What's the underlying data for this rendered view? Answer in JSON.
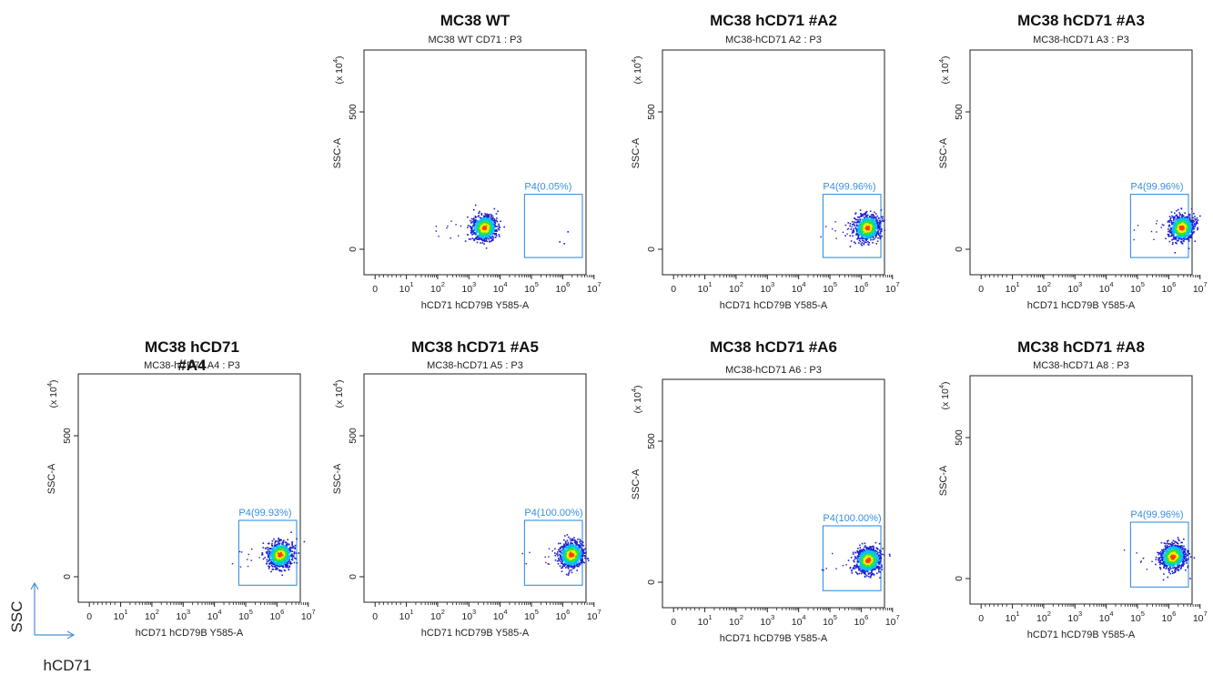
{
  "colors": {
    "gate": "#3a8fe0",
    "axis": "#222222",
    "legend_arrow": "#4a90d9",
    "density": [
      "#2020d0",
      "#00c0ff",
      "#30e040",
      "#f0f000",
      "#ff4000"
    ]
  },
  "legend": {
    "y_label": "SSC",
    "x_label": "hCD71"
  },
  "chart_data": [
    {
      "type": "scatter",
      "title": "MC38 WT",
      "subtitle": "MC38 WT CD71 : P3",
      "xlabel": "hCD71 hCD79B Y585-A",
      "ylabel": "SSC-A",
      "x_scale": "log",
      "xlim": [
        0,
        10000000
      ],
      "x_ticks": [
        "0",
        "10",
        "10",
        "10",
        "10",
        "10",
        "10",
        "10"
      ],
      "x_tick_exps": [
        "",
        "1",
        "2",
        "3",
        "4",
        "5",
        "6",
        "7"
      ],
      "y_multiplier": "(x 10",
      "y_multiplier_exp": "4",
      "y_ticks": [
        "0",
        "500"
      ],
      "gate": {
        "name": "P4",
        "label": "P4(0.05%)",
        "percent": 0.05,
        "x_range": [
          60000,
          10000000
        ],
        "y_range": [
          -30,
          200
        ]
      },
      "population": {
        "x_center": 3000,
        "y_center": 80
      }
    },
    {
      "type": "scatter",
      "title": "MC38 hCD71 #A2",
      "subtitle": "MC38-hCD71 A2 : P3",
      "xlabel": "hCD71 hCD79B Y585-A",
      "ylabel": "SSC-A",
      "x_scale": "log",
      "xlim": [
        0,
        10000000
      ],
      "x_ticks": [
        "0",
        "10",
        "10",
        "10",
        "10",
        "10",
        "10",
        "10"
      ],
      "x_tick_exps": [
        "",
        "1",
        "2",
        "3",
        "4",
        "5",
        "6",
        "7"
      ],
      "y_multiplier": "(x 10",
      "y_multiplier_exp": "4",
      "y_ticks": [
        "0",
        "500"
      ],
      "gate": {
        "name": "P4",
        "label": "P4(99.96%)",
        "percent": 99.96,
        "x_range": [
          60000,
          10000000
        ],
        "y_range": [
          -30,
          200
        ]
      },
      "population": {
        "x_center": 1500000,
        "y_center": 80
      }
    },
    {
      "type": "scatter",
      "title": "MC38 hCD71 #A3",
      "subtitle": "MC38-hCD71 A3 : P3",
      "xlabel": "hCD71 hCD79B Y585-A",
      "ylabel": "SSC-A",
      "x_scale": "log",
      "xlim": [
        0,
        10000000
      ],
      "x_ticks": [
        "0",
        "10",
        "10",
        "10",
        "10",
        "10",
        "10",
        "10"
      ],
      "x_tick_exps": [
        "",
        "1",
        "2",
        "3",
        "4",
        "5",
        "6",
        "7"
      ],
      "y_multiplier": "(x 10",
      "y_multiplier_exp": "4",
      "y_ticks": [
        "0",
        "500"
      ],
      "gate": {
        "name": "P4",
        "label": "P4(99.96%)",
        "percent": 99.96,
        "x_range": [
          60000,
          10000000
        ],
        "y_range": [
          -30,
          200
        ]
      },
      "population": {
        "x_center": 2500000,
        "y_center": 80
      }
    },
    {
      "type": "scatter",
      "title": "MC38 hCD71 #A4",
      "subtitle": "MC38-hCD71 A4 : P3",
      "xlabel": "hCD71 hCD79B Y585-A",
      "ylabel": "SSC-A",
      "x_scale": "log",
      "xlim": [
        0,
        10000000
      ],
      "x_ticks": [
        "0",
        "10",
        "10",
        "10",
        "10",
        "10",
        "10",
        "10"
      ],
      "x_tick_exps": [
        "",
        "1",
        "2",
        "3",
        "4",
        "5",
        "6",
        "7"
      ],
      "y_multiplier": "(x 10",
      "y_multiplier_exp": "4",
      "y_ticks": [
        "0",
        "500"
      ],
      "gate": {
        "name": "P4",
        "label": "P4(99.93%)",
        "percent": 99.93,
        "x_range": [
          60000,
          10000000
        ],
        "y_range": [
          -30,
          200
        ]
      },
      "population": {
        "x_center": 1200000,
        "y_center": 80
      }
    },
    {
      "type": "scatter",
      "title": "MC38 hCD71 #A5",
      "subtitle": "MC38-hCD71 A5 : P3",
      "xlabel": "hCD71 hCD79B Y585-A",
      "ylabel": "SSC-A",
      "x_scale": "log",
      "xlim": [
        0,
        10000000
      ],
      "x_ticks": [
        "0",
        "10",
        "10",
        "10",
        "10",
        "10",
        "10",
        "10"
      ],
      "x_tick_exps": [
        "",
        "1",
        "2",
        "3",
        "4",
        "5",
        "6",
        "7"
      ],
      "y_multiplier": "(x 10",
      "y_multiplier_exp": "4",
      "y_ticks": [
        "0",
        "500"
      ],
      "gate": {
        "name": "P4",
        "label": "P4(100.00%)",
        "percent": 100.0,
        "x_range": [
          60000,
          10000000
        ],
        "y_range": [
          -30,
          200
        ]
      },
      "population": {
        "x_center": 1800000,
        "y_center": 80
      }
    },
    {
      "type": "scatter",
      "title": "MC38 hCD71 #A6",
      "subtitle": "MC38-hCD71 A6 : P3",
      "xlabel": "hCD71 hCD79B Y585-A",
      "ylabel": "SSC-A",
      "x_scale": "log",
      "xlim": [
        0,
        10000000
      ],
      "x_ticks": [
        "0",
        "10",
        "10",
        "10",
        "10",
        "10",
        "10",
        "10"
      ],
      "x_tick_exps": [
        "",
        "1",
        "2",
        "3",
        "4",
        "5",
        "6",
        "7"
      ],
      "y_multiplier": "(x 10",
      "y_multiplier_exp": "4",
      "y_ticks": [
        "0",
        "500"
      ],
      "gate": {
        "name": "P4",
        "label": "P4(100.00%)",
        "percent": 100.0,
        "x_range": [
          60000,
          10000000
        ],
        "y_range": [
          -30,
          200
        ]
      },
      "population": {
        "x_center": 1600000,
        "y_center": 80
      }
    },
    {
      "type": "scatter",
      "title": "MC38 hCD71 #A8",
      "subtitle": "MC38-hCD71 A8 : P3",
      "xlabel": "hCD71 hCD79B Y585-A",
      "ylabel": "SSC-A",
      "x_scale": "log",
      "xlim": [
        0,
        10000000
      ],
      "x_ticks": [
        "0",
        "10",
        "10",
        "10",
        "10",
        "10",
        "10",
        "10"
      ],
      "x_tick_exps": [
        "",
        "1",
        "2",
        "3",
        "4",
        "5",
        "6",
        "7"
      ],
      "y_multiplier": "(x 10",
      "y_multiplier_exp": "4",
      "y_ticks": [
        "0",
        "500"
      ],
      "gate": {
        "name": "P4",
        "label": "P4(99.96%)",
        "percent": 99.96,
        "x_range": [
          60000,
          10000000
        ],
        "y_range": [
          -30,
          200
        ]
      },
      "population": {
        "x_center": 1300000,
        "y_center": 80
      }
    }
  ]
}
